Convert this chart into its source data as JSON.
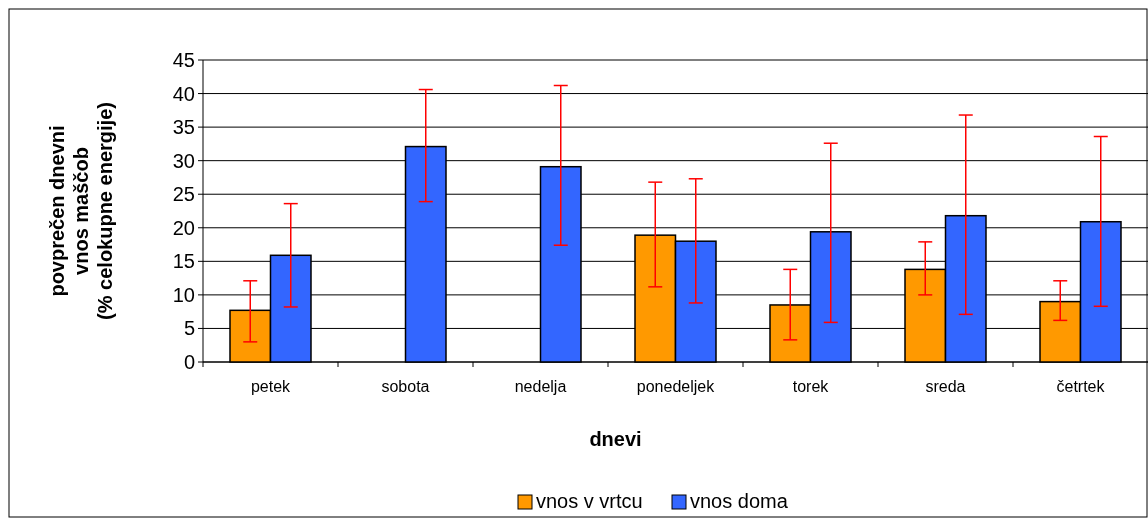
{
  "chart_data": {
    "type": "bar",
    "xlabel": "dnevi",
    "ylabel": "povprečen dnevni\nvnos maščob\n(% celokupne energije)",
    "categories": [
      "petek",
      "sobota",
      "nedelja",
      "ponedeljek",
      "torek",
      "sreda",
      "četrtek"
    ],
    "series": [
      {
        "name": "vnos v vrtcu",
        "color": "#ff9900",
        "values": [
          7.7,
          null,
          null,
          18.9,
          8.5,
          13.8,
          9.0
        ],
        "errors": [
          [
            3,
            12.1
          ],
          null,
          null,
          [
            11.2,
            26.8
          ],
          [
            3.3,
            13.8
          ],
          [
            10,
            17.9
          ],
          [
            6.2,
            12.1
          ]
        ]
      },
      {
        "name": "vnos doma",
        "color": "#3366ff",
        "values": [
          15.9,
          32.1,
          29.1,
          18,
          19.4,
          21.8,
          20.9
        ],
        "errors": [
          [
            8.2,
            23.6
          ],
          [
            23.9,
            40.6
          ],
          [
            17.4,
            41.2
          ],
          [
            8.8,
            27.3
          ],
          [
            5.9,
            32.6
          ],
          [
            7.1,
            36.8
          ],
          [
            8.3,
            33.6
          ]
        ]
      }
    ],
    "ylim": [
      0,
      45
    ],
    "yticks": [
      0,
      5,
      10,
      15,
      20,
      25,
      30,
      35,
      40,
      45
    ],
    "grid": "y",
    "legend": "bottom"
  }
}
